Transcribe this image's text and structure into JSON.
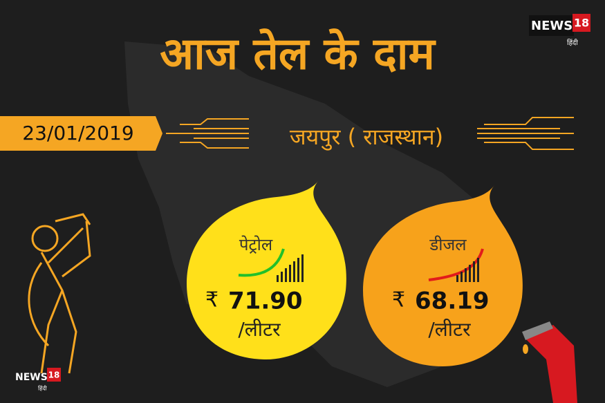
{
  "header": {
    "title": "आज तेल के दाम",
    "logo": {
      "brand": "NEWS",
      "number": "18",
      "language": "हिंदी"
    }
  },
  "date": "23/01/2019",
  "city": "जयपुर ( राजस्थान)",
  "prices": [
    {
      "fuel": "पेट्रोल",
      "currency": "₹",
      "price": "71.90",
      "unit": "/लीटर"
    },
    {
      "fuel": "डीजल",
      "currency": "₹",
      "price": "68.19",
      "unit": "/लीटर"
    }
  ],
  "footer_logo": {
    "brand": "NEWS",
    "number": "18",
    "language": "हिंदी"
  }
}
